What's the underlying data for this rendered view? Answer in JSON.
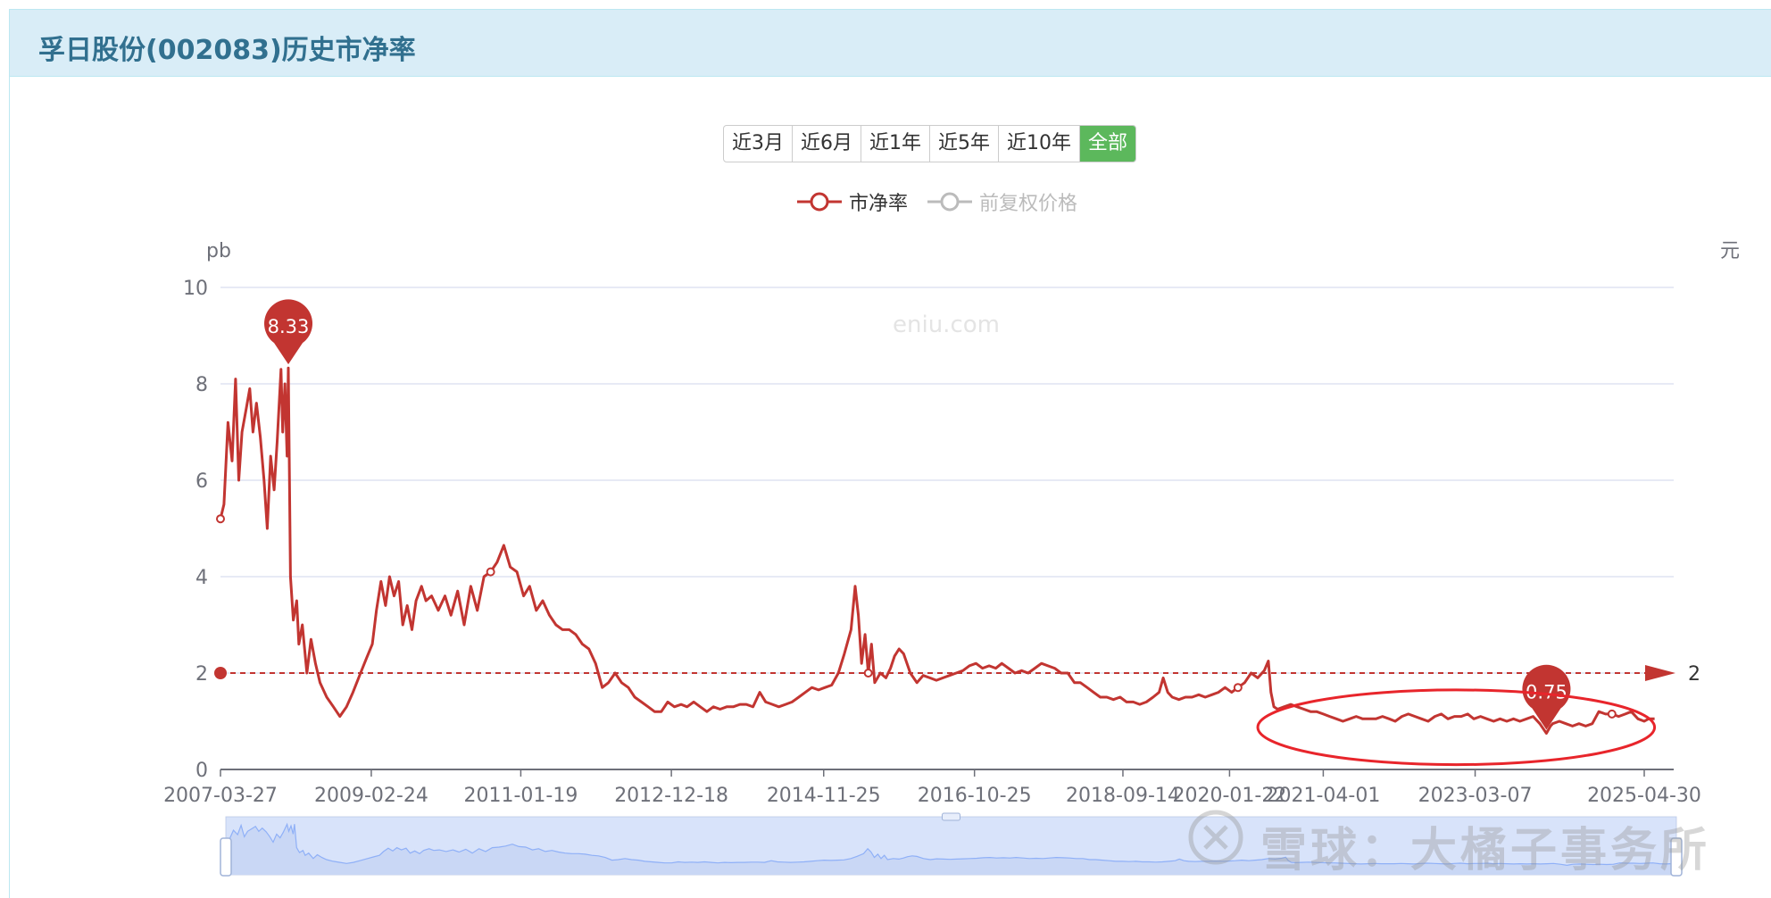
{
  "panel": {
    "title": "孚日股份(002083)历史市净率"
  },
  "range_buttons": [
    {
      "label": "近3月",
      "active": false
    },
    {
      "label": "近6月",
      "active": false
    },
    {
      "label": "近1年",
      "active": false
    },
    {
      "label": "近5年",
      "active": false
    },
    {
      "label": "近10年",
      "active": false
    },
    {
      "label": "全部",
      "active": true
    }
  ],
  "legend": [
    {
      "label": "市净率",
      "color": "#c23531",
      "enabled": true
    },
    {
      "label": "前复权价格",
      "color": "#bbbbbb",
      "enabled": false
    }
  ],
  "watermark": {
    "site": "eniu.com",
    "xueqiu": "雪球：大橘子事务所"
  },
  "colors": {
    "series": "#c23531",
    "grid": "#dfe3f2",
    "axis": "#6e7079",
    "zoom_fill": "#d6e0f5",
    "zoom_line": "#8fb0f7"
  },
  "chart_data": {
    "type": "line",
    "title": "孚日股份(002083)历史市净率",
    "ylabel_left": "pb",
    "ylabel_right": "元",
    "ylim": [
      0,
      10
    ],
    "yticks": [
      "0",
      "2",
      "4",
      "6",
      "8",
      "10"
    ],
    "xlim": [
      "2007-03-27",
      "2025-06-17"
    ],
    "xticks": [
      "2007-03-27",
      "2009-02-24",
      "2011-01-19",
      "2012-12-18",
      "2014-11-25",
      "2016-10-25",
      "2018-09-14",
      "2020-01-22",
      "2021-04-01",
      "2023-03-07",
      "2025-04-30"
    ],
    "grid": true,
    "legend_position": "top",
    "series": [
      {
        "name": "市净率",
        "points": [
          [
            "2007-03-27",
            5.2
          ],
          [
            "2007-04-12",
            5.5
          ],
          [
            "2007-05-01",
            7.2
          ],
          [
            "2007-05-20",
            6.4
          ],
          [
            "2007-06-05",
            8.1
          ],
          [
            "2007-06-20",
            6.0
          ],
          [
            "2007-07-05",
            7.0
          ],
          [
            "2007-07-25",
            7.5
          ],
          [
            "2007-08-10",
            7.9
          ],
          [
            "2007-08-25",
            7.0
          ],
          [
            "2007-09-10",
            7.6
          ],
          [
            "2007-09-28",
            6.9
          ],
          [
            "2007-10-15",
            6.0
          ],
          [
            "2007-10-30",
            5.0
          ],
          [
            "2007-11-15",
            6.5
          ],
          [
            "2007-12-01",
            5.8
          ],
          [
            "2007-12-15",
            6.8
          ],
          [
            "2008-01-02",
            8.3
          ],
          [
            "2008-01-10",
            7.0
          ],
          [
            "2008-01-20",
            8.0
          ],
          [
            "2008-01-30",
            6.5
          ],
          [
            "2008-02-05",
            8.33
          ],
          [
            "2008-02-15",
            4.0
          ],
          [
            "2008-02-28",
            3.1
          ],
          [
            "2008-03-15",
            3.5
          ],
          [
            "2008-03-25",
            2.6
          ],
          [
            "2008-04-10",
            3.0
          ],
          [
            "2008-05-01",
            2.0
          ],
          [
            "2008-05-20",
            2.7
          ],
          [
            "2008-06-10",
            2.2
          ],
          [
            "2008-07-01",
            1.8
          ],
          [
            "2008-08-01",
            1.5
          ],
          [
            "2008-09-01",
            1.3
          ],
          [
            "2008-10-01",
            1.1
          ],
          [
            "2008-11-01",
            1.3
          ],
          [
            "2008-12-01",
            1.6
          ],
          [
            "2009-01-05",
            2.0
          ],
          [
            "2009-02-01",
            2.3
          ],
          [
            "2009-03-01",
            2.6
          ],
          [
            "2009-03-20",
            3.3
          ],
          [
            "2009-04-10",
            3.9
          ],
          [
            "2009-05-01",
            3.4
          ],
          [
            "2009-05-20",
            4.0
          ],
          [
            "2009-06-10",
            3.6
          ],
          [
            "2009-07-01",
            3.9
          ],
          [
            "2009-07-20",
            3.0
          ],
          [
            "2009-08-10",
            3.4
          ],
          [
            "2009-09-01",
            2.9
          ],
          [
            "2009-09-20",
            3.5
          ],
          [
            "2009-10-15",
            3.8
          ],
          [
            "2009-11-05",
            3.5
          ],
          [
            "2009-12-01",
            3.6
          ],
          [
            "2010-01-01",
            3.3
          ],
          [
            "2010-02-01",
            3.6
          ],
          [
            "2010-03-01",
            3.2
          ],
          [
            "2010-04-01",
            3.7
          ],
          [
            "2010-05-01",
            3.0
          ],
          [
            "2010-06-01",
            3.8
          ],
          [
            "2010-07-01",
            3.3
          ],
          [
            "2010-08-01",
            4.0
          ],
          [
            "2010-09-01",
            4.1
          ],
          [
            "2010-10-01",
            4.3
          ],
          [
            "2010-11-01",
            4.65
          ],
          [
            "2010-12-01",
            4.2
          ],
          [
            "2011-01-01",
            4.1
          ],
          [
            "2011-02-01",
            3.6
          ],
          [
            "2011-03-01",
            3.8
          ],
          [
            "2011-04-01",
            3.3
          ],
          [
            "2011-05-01",
            3.5
          ],
          [
            "2011-06-01",
            3.2
          ],
          [
            "2011-07-01",
            3.0
          ],
          [
            "2011-08-01",
            2.9
          ],
          [
            "2011-09-01",
            2.9
          ],
          [
            "2011-10-01",
            2.8
          ],
          [
            "2011-11-01",
            2.6
          ],
          [
            "2011-12-01",
            2.5
          ],
          [
            "2012-01-01",
            2.2
          ],
          [
            "2012-02-01",
            1.7
          ],
          [
            "2012-03-01",
            1.8
          ],
          [
            "2012-04-01",
            2.0
          ],
          [
            "2012-05-01",
            1.8
          ],
          [
            "2012-06-01",
            1.7
          ],
          [
            "2012-07-01",
            1.5
          ],
          [
            "2012-08-01",
            1.4
          ],
          [
            "2012-09-01",
            1.3
          ],
          [
            "2012-10-01",
            1.2
          ],
          [
            "2012-11-01",
            1.2
          ],
          [
            "2012-12-01",
            1.4
          ],
          [
            "2013-01-01",
            1.3
          ],
          [
            "2013-02-01",
            1.35
          ],
          [
            "2013-03-01",
            1.3
          ],
          [
            "2013-04-01",
            1.4
          ],
          [
            "2013-05-01",
            1.3
          ],
          [
            "2013-06-01",
            1.2
          ],
          [
            "2013-07-01",
            1.3
          ],
          [
            "2013-08-01",
            1.25
          ],
          [
            "2013-09-01",
            1.3
          ],
          [
            "2013-10-01",
            1.3
          ],
          [
            "2013-11-01",
            1.35
          ],
          [
            "2013-12-01",
            1.35
          ],
          [
            "2014-01-01",
            1.3
          ],
          [
            "2014-02-01",
            1.6
          ],
          [
            "2014-03-01",
            1.4
          ],
          [
            "2014-04-01",
            1.35
          ],
          [
            "2014-05-01",
            1.3
          ],
          [
            "2014-06-01",
            1.35
          ],
          [
            "2014-07-01",
            1.4
          ],
          [
            "2014-08-01",
            1.5
          ],
          [
            "2014-09-01",
            1.6
          ],
          [
            "2014-10-01",
            1.7
          ],
          [
            "2014-11-01",
            1.65
          ],
          [
            "2014-12-01",
            1.7
          ],
          [
            "2015-01-01",
            1.75
          ],
          [
            "2015-02-01",
            2.0
          ],
          [
            "2015-03-01",
            2.4
          ],
          [
            "2015-04-01",
            2.9
          ],
          [
            "2015-04-20",
            3.8
          ],
          [
            "2015-05-05",
            3.2
          ],
          [
            "2015-05-20",
            2.2
          ],
          [
            "2015-06-05",
            2.8
          ],
          [
            "2015-06-20",
            2.0
          ],
          [
            "2015-07-05",
            2.6
          ],
          [
            "2015-07-20",
            1.8
          ],
          [
            "2015-08-15",
            2.0
          ],
          [
            "2015-09-10",
            1.9
          ],
          [
            "2015-10-01",
            2.1
          ],
          [
            "2015-10-20",
            2.35
          ],
          [
            "2015-11-10",
            2.5
          ],
          [
            "2015-12-01",
            2.4
          ],
          [
            "2016-01-01",
            2.0
          ],
          [
            "2016-02-01",
            1.8
          ],
          [
            "2016-03-01",
            1.95
          ],
          [
            "2016-04-01",
            1.9
          ],
          [
            "2016-05-01",
            1.85
          ],
          [
            "2016-06-01",
            1.9
          ],
          [
            "2016-07-01",
            1.95
          ],
          [
            "2016-08-01",
            2.0
          ],
          [
            "2016-09-01",
            2.05
          ],
          [
            "2016-10-01",
            2.15
          ],
          [
            "2016-11-01",
            2.2
          ],
          [
            "2016-12-01",
            2.1
          ],
          [
            "2017-01-01",
            2.15
          ],
          [
            "2017-02-01",
            2.1
          ],
          [
            "2017-03-01",
            2.2
          ],
          [
            "2017-04-01",
            2.1
          ],
          [
            "2017-05-01",
            2.0
          ],
          [
            "2017-06-01",
            2.05
          ],
          [
            "2017-07-01",
            2.0
          ],
          [
            "2017-08-01",
            2.1
          ],
          [
            "2017-09-01",
            2.2
          ],
          [
            "2017-10-01",
            2.15
          ],
          [
            "2017-11-01",
            2.1
          ],
          [
            "2017-12-01",
            2.0
          ],
          [
            "2018-01-01",
            2.0
          ],
          [
            "2018-02-01",
            1.8
          ],
          [
            "2018-03-01",
            1.8
          ],
          [
            "2018-04-01",
            1.7
          ],
          [
            "2018-05-01",
            1.6
          ],
          [
            "2018-06-01",
            1.5
          ],
          [
            "2018-07-01",
            1.5
          ],
          [
            "2018-08-01",
            1.45
          ],
          [
            "2018-09-01",
            1.5
          ],
          [
            "2018-10-01",
            1.4
          ],
          [
            "2018-11-01",
            1.4
          ],
          [
            "2018-12-01",
            1.35
          ],
          [
            "2019-01-01",
            1.4
          ],
          [
            "2019-02-01",
            1.5
          ],
          [
            "2019-03-01",
            1.6
          ],
          [
            "2019-03-20",
            1.9
          ],
          [
            "2019-04-10",
            1.6
          ],
          [
            "2019-05-01",
            1.5
          ],
          [
            "2019-06-01",
            1.45
          ],
          [
            "2019-07-01",
            1.5
          ],
          [
            "2019-08-01",
            1.5
          ],
          [
            "2019-09-01",
            1.55
          ],
          [
            "2019-10-01",
            1.5
          ],
          [
            "2019-11-01",
            1.55
          ],
          [
            "2019-12-01",
            1.6
          ],
          [
            "2020-01-01",
            1.7
          ],
          [
            "2020-02-01",
            1.6
          ],
          [
            "2020-03-01",
            1.7
          ],
          [
            "2020-04-01",
            1.8
          ],
          [
            "2020-05-01",
            2.0
          ],
          [
            "2020-06-01",
            1.9
          ],
          [
            "2020-07-01",
            2.05
          ],
          [
            "2020-07-20",
            2.25
          ],
          [
            "2020-08-01",
            1.6
          ],
          [
            "2020-08-15",
            1.3
          ],
          [
            "2020-09-01",
            1.25
          ],
          [
            "2020-10-01",
            1.3
          ],
          [
            "2020-11-01",
            1.35
          ],
          [
            "2020-12-01",
            1.3
          ],
          [
            "2021-01-01",
            1.25
          ],
          [
            "2021-02-01",
            1.2
          ],
          [
            "2021-03-01",
            1.2
          ],
          [
            "2021-04-01",
            1.15
          ],
          [
            "2021-05-01",
            1.1
          ],
          [
            "2021-06-01",
            1.05
          ],
          [
            "2021-07-01",
            1.0
          ],
          [
            "2021-08-01",
            1.05
          ],
          [
            "2021-09-01",
            1.1
          ],
          [
            "2021-10-01",
            1.05
          ],
          [
            "2021-11-01",
            1.05
          ],
          [
            "2021-12-01",
            1.05
          ],
          [
            "2022-01-01",
            1.1
          ],
          [
            "2022-02-01",
            1.05
          ],
          [
            "2022-03-01",
            1.0
          ],
          [
            "2022-04-01",
            1.1
          ],
          [
            "2022-05-01",
            1.15
          ],
          [
            "2022-06-01",
            1.1
          ],
          [
            "2022-07-01",
            1.05
          ],
          [
            "2022-08-01",
            1.0
          ],
          [
            "2022-09-01",
            1.1
          ],
          [
            "2022-10-01",
            1.15
          ],
          [
            "2022-11-01",
            1.05
          ],
          [
            "2022-12-01",
            1.1
          ],
          [
            "2023-01-01",
            1.1
          ],
          [
            "2023-02-01",
            1.15
          ],
          [
            "2023-03-01",
            1.05
          ],
          [
            "2023-04-01",
            1.1
          ],
          [
            "2023-05-01",
            1.05
          ],
          [
            "2023-06-01",
            1.0
          ],
          [
            "2023-07-01",
            1.05
          ],
          [
            "2023-08-01",
            1.0
          ],
          [
            "2023-09-01",
            1.05
          ],
          [
            "2023-10-01",
            1.0
          ],
          [
            "2023-11-01",
            1.05
          ],
          [
            "2023-12-01",
            1.1
          ],
          [
            "2024-01-01",
            0.95
          ],
          [
            "2024-02-01",
            0.75
          ],
          [
            "2024-02-20",
            0.9
          ],
          [
            "2024-03-01",
            0.95
          ],
          [
            "2024-04-01",
            1.0
          ],
          [
            "2024-05-01",
            0.95
          ],
          [
            "2024-06-01",
            0.9
          ],
          [
            "2024-07-01",
            0.95
          ],
          [
            "2024-08-01",
            0.9
          ],
          [
            "2024-09-01",
            0.95
          ],
          [
            "2024-10-01",
            1.2
          ],
          [
            "2024-11-01",
            1.15
          ],
          [
            "2024-12-01",
            1.15
          ],
          [
            "2025-01-01",
            1.1
          ],
          [
            "2025-02-01",
            1.15
          ],
          [
            "2025-03-01",
            1.2
          ],
          [
            "2025-04-01",
            1.05
          ],
          [
            "2025-04-30",
            1.0
          ],
          [
            "2025-05-20",
            1.05
          ],
          [
            "2025-06-17",
            1.05
          ]
        ]
      }
    ],
    "mark_points": [
      {
        "label": "8.33",
        "x": "2008-02-05",
        "y": 8.33
      },
      {
        "label": "0.75",
        "x": "2024-02-01",
        "y": 0.75
      }
    ],
    "mark_line": {
      "label": "2",
      "y": 2
    },
    "annotation": {
      "shape": "ellipse",
      "color": "#e8252b",
      "x_from": "2020-06-01",
      "x_to": "2025-06-17",
      "y_from": 0.1,
      "y_to": 1.65
    }
  }
}
